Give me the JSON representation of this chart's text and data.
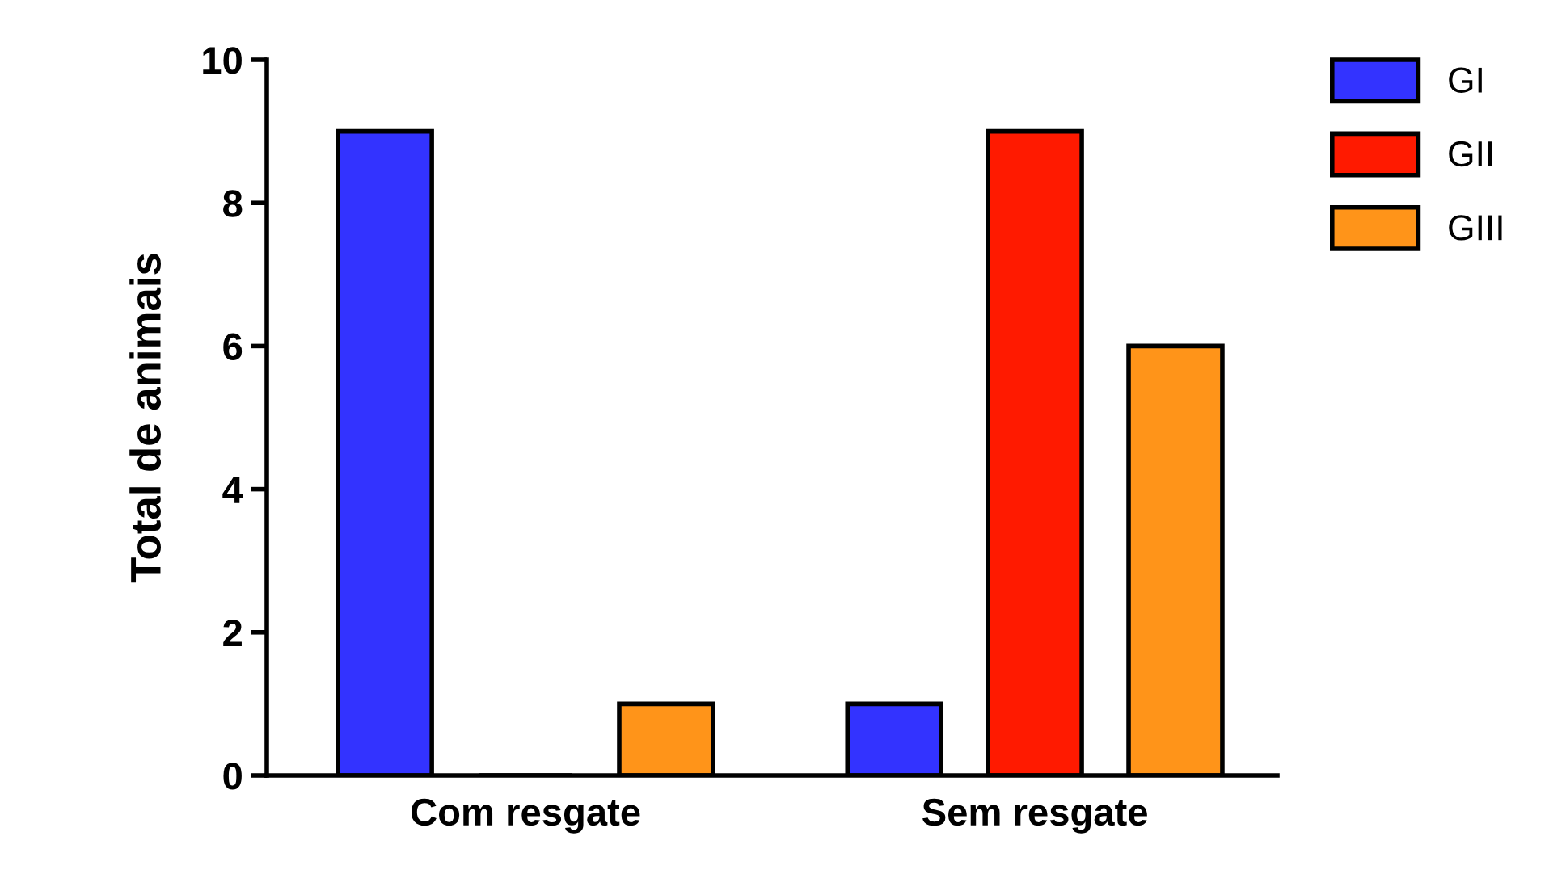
{
  "chart_data": {
    "type": "bar",
    "ylabel": "Total de animais",
    "categories": [
      "Com resgate",
      "Sem resgate"
    ],
    "series": [
      {
        "name": "GI",
        "color": "#3333ff",
        "values": [
          9,
          1
        ]
      },
      {
        "name": "GII",
        "color": "#ff1a00",
        "values": [
          0,
          9
        ]
      },
      {
        "name": "GIII",
        "color": "#ff9419",
        "values": [
          1,
          6
        ]
      }
    ],
    "ylim": [
      0,
      10
    ],
    "yticks": [
      0,
      2,
      4,
      6,
      8,
      10
    ],
    "grid": false,
    "legend": "top right"
  }
}
